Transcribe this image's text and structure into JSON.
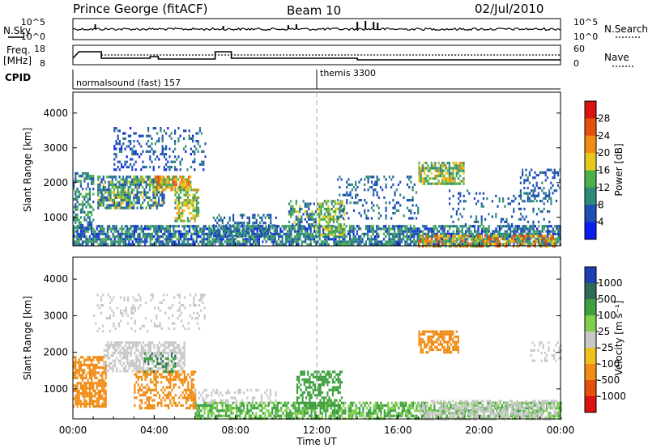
{
  "header": {
    "title": "Prince George (fitACF)",
    "beam": "Beam 10",
    "date": "02/Jul/2010"
  },
  "noise_panel": {
    "left_label": "N.Sky",
    "right_label": "N.Search",
    "left_ticks": [
      "10^5",
      "10^0"
    ],
    "right_ticks": [
      "10^5",
      "10^0"
    ]
  },
  "freq_panel": {
    "left_label_1": "Freq.",
    "left_label_2": "[MHz]",
    "right_label": "Nave",
    "left_ticks": [
      "18",
      "8"
    ],
    "right_ticks": [
      "60",
      "0"
    ]
  },
  "cpid": {
    "label": "CPID",
    "segments": [
      {
        "name": "normalsound (fast) 157",
        "start_hour": 0
      },
      {
        "name": "themis 3300",
        "start_hour": 12
      }
    ]
  },
  "chart_data": [
    {
      "type": "heatmap",
      "quantity": "Power",
      "colorbar_label": "Power [dB]",
      "colorbar_ticks": [
        "4",
        "8",
        "12",
        "16",
        "20",
        "24",
        "28"
      ],
      "colorbar_range": [
        0,
        30
      ],
      "colors": [
        "#0a1ef0",
        "#1f4fb4",
        "#2f8a7a",
        "#4bb04b",
        "#e6c81e",
        "#f08c14",
        "#e6500f",
        "#d91212"
      ],
      "ylabel": "Slant Range [km]",
      "yticks": [
        "1000",
        "2000",
        "3000",
        "4000"
      ],
      "ylim": [
        180,
        4600
      ],
      "xlim_hours": [
        0,
        24
      ],
      "scatter_regions": [
        {
          "t0": 0,
          "t1": 24,
          "r0": 200,
          "r1": 780,
          "lo": 3,
          "hi": 14,
          "density": 0.75
        },
        {
          "t0": 17,
          "t1": 23.8,
          "r0": 200,
          "r1": 500,
          "lo": 12,
          "hi": 28,
          "density": 0.6
        },
        {
          "t0": 0,
          "t1": 1.0,
          "r0": 700,
          "r1": 2300,
          "lo": 4,
          "hi": 16,
          "density": 0.55
        },
        {
          "t0": 1.2,
          "t1": 4.5,
          "r0": 1300,
          "r1": 2200,
          "lo": 4,
          "hi": 18,
          "density": 0.7
        },
        {
          "t0": 4.0,
          "t1": 5.8,
          "r0": 1800,
          "r1": 2200,
          "lo": 12,
          "hi": 26,
          "density": 0.8
        },
        {
          "t0": 5.0,
          "t1": 6.2,
          "r0": 900,
          "r1": 1900,
          "lo": 10,
          "hi": 22,
          "density": 0.6
        },
        {
          "t0": 2.0,
          "t1": 6.5,
          "r0": 2400,
          "r1": 3600,
          "lo": 3,
          "hi": 10,
          "density": 0.25
        },
        {
          "t0": 10.6,
          "t1": 12.0,
          "r0": 700,
          "r1": 1500,
          "lo": 4,
          "hi": 18,
          "density": 0.5
        },
        {
          "t0": 12.0,
          "t1": 13.4,
          "r0": 500,
          "r1": 1500,
          "lo": 8,
          "hi": 20,
          "density": 0.6
        },
        {
          "t0": 6.8,
          "t1": 10.0,
          "r0": 500,
          "r1": 1100,
          "lo": 4,
          "hi": 12,
          "density": 0.4
        },
        {
          "t0": 13.0,
          "t1": 17.0,
          "r0": 1000,
          "r1": 2200,
          "lo": 4,
          "hi": 10,
          "density": 0.2
        },
        {
          "t0": 17.0,
          "t1": 19.2,
          "r0": 2000,
          "r1": 2600,
          "lo": 8,
          "hi": 22,
          "density": 0.7
        },
        {
          "t0": 18.5,
          "t1": 23.5,
          "r0": 800,
          "r1": 1800,
          "lo": 4,
          "hi": 10,
          "density": 0.15
        },
        {
          "t0": 22.0,
          "t1": 24.0,
          "r0": 1500,
          "r1": 2400,
          "lo": 4,
          "hi": 10,
          "density": 0.3
        }
      ]
    },
    {
      "type": "heatmap",
      "quantity": "Velocity",
      "colorbar_label": "Velocity [m s⁻¹]",
      "colorbar_ticks": [
        "1000",
        "500",
        "100",
        "25",
        "-25",
        "-100",
        "-500",
        "-1000"
      ],
      "colorbar_range": [
        -1200,
        1200
      ],
      "colors": [
        "#1f3fb4",
        "#2d6a5a",
        "#3fa03f",
        "#7ed04a",
        "#c8c8c8",
        "#f0c01e",
        "#f08c14",
        "#e6500f",
        "#d91212"
      ],
      "ylabel": "Slant Range [km]",
      "yticks": [
        "1000",
        "2000",
        "3000",
        "4000"
      ],
      "ylim": [
        180,
        4600
      ],
      "xticks": [
        "00:00",
        "04:00",
        "08:00",
        "12:00",
        "16:00",
        "20:00",
        "00:00"
      ],
      "xlabel": "Time UT",
      "xlim_hours": [
        0,
        24
      ],
      "scatter_regions": [
        {
          "t0": 6.0,
          "t1": 24,
          "r0": 200,
          "r1": 650,
          "lo": 30,
          "hi": 180,
          "density": 0.65
        },
        {
          "t0": 17,
          "t1": 23.8,
          "r0": 200,
          "r1": 700,
          "lo": -20,
          "hi": 20,
          "density": 0.5
        },
        {
          "t0": 0,
          "t1": 1.6,
          "r0": 500,
          "r1": 1900,
          "lo": -400,
          "hi": -100,
          "density": 0.7
        },
        {
          "t0": 1.5,
          "t1": 5.5,
          "r0": 1500,
          "r1": 2300,
          "lo": -20,
          "hi": 20,
          "density": 0.6
        },
        {
          "t0": 3.0,
          "t1": 6.0,
          "r0": 500,
          "r1": 1500,
          "lo": -400,
          "hi": -100,
          "density": 0.45
        },
        {
          "t0": 3.5,
          "t1": 5.0,
          "r0": 1500,
          "r1": 2000,
          "lo": 200,
          "hi": 800,
          "density": 0.3
        },
        {
          "t0": 11.0,
          "t1": 13.2,
          "r0": 500,
          "r1": 1500,
          "lo": 100,
          "hi": 400,
          "density": 0.55
        },
        {
          "t0": 17.0,
          "t1": 19.0,
          "r0": 2000,
          "r1": 2600,
          "lo": -300,
          "hi": -100,
          "density": 0.7
        },
        {
          "t0": 6.0,
          "t1": 10.0,
          "r0": 600,
          "r1": 1000,
          "lo": -20,
          "hi": 20,
          "density": 0.3
        },
        {
          "t0": 1.0,
          "t1": 6.5,
          "r0": 2600,
          "r1": 3600,
          "lo": -20,
          "hi": 20,
          "density": 0.15
        },
        {
          "t0": 22.5,
          "t1": 24.0,
          "r0": 1800,
          "r1": 2300,
          "lo": -20,
          "hi": 20,
          "density": 0.3
        }
      ]
    }
  ]
}
